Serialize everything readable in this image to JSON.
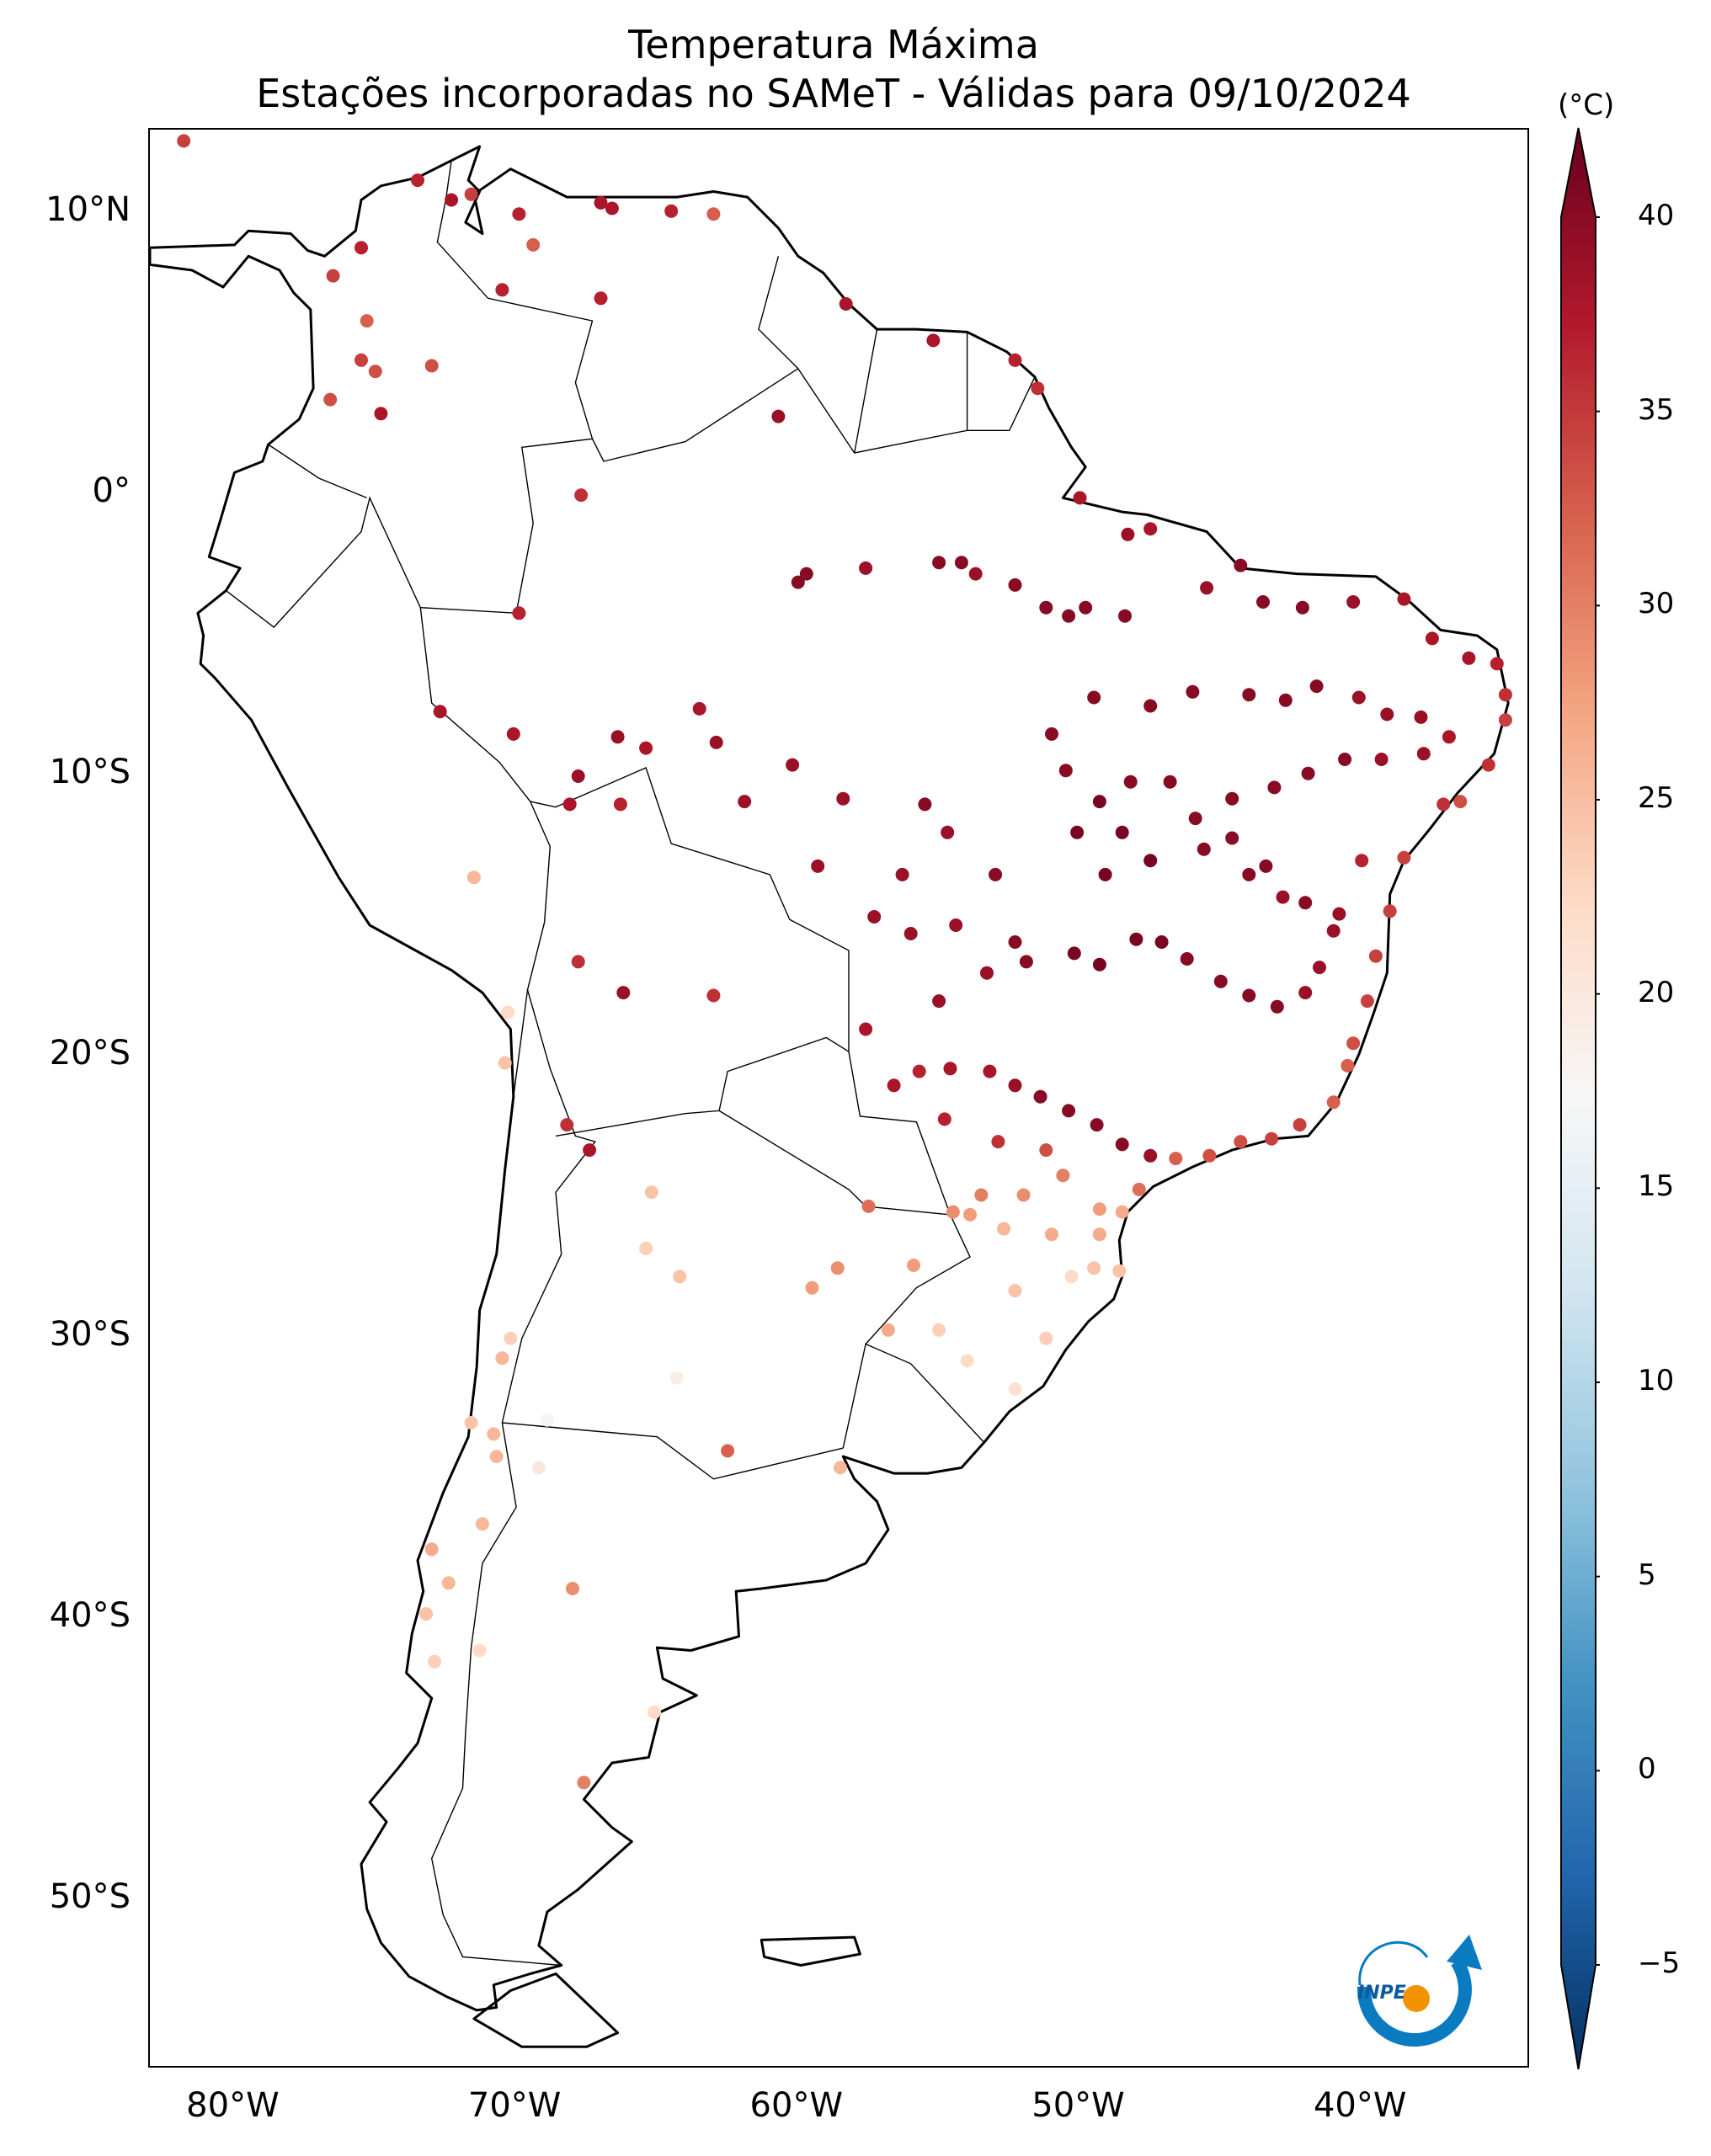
{
  "title": {
    "line1": "Temperatura Máxima",
    "line2": "Estações incorporadas no SAMeT - Válidas para 09/10/2024"
  },
  "map": {
    "lon_range": [
      -83,
      -34
    ],
    "lat_range": [
      -56,
      13
    ],
    "lat_labels": [
      {
        "value": 10,
        "text": "10°N"
      },
      {
        "value": 0,
        "text": "0°"
      },
      {
        "value": -10,
        "text": "10°S"
      },
      {
        "value": -20,
        "text": "20°S"
      },
      {
        "value": -30,
        "text": "30°S"
      },
      {
        "value": -40,
        "text": "40°S"
      },
      {
        "value": -50,
        "text": "50°S"
      }
    ],
    "lon_labels": [
      {
        "value": -80,
        "text": "80°W"
      },
      {
        "value": -70,
        "text": "70°W"
      },
      {
        "value": -60,
        "text": "60°W"
      },
      {
        "value": -50,
        "text": "50°W"
      },
      {
        "value": -40,
        "text": "40°W"
      }
    ]
  },
  "colorbar": {
    "unit": "(°C)",
    "min": -5,
    "max": 40,
    "ticks": [
      "40",
      "35",
      "30",
      "25",
      "20",
      "15",
      "10",
      "5",
      "0",
      "−5"
    ],
    "tick_values": [
      40,
      35,
      30,
      25,
      20,
      15,
      10,
      5,
      0,
      -5
    ],
    "colormap": [
      "#053061",
      "#2166ac",
      "#4393c3",
      "#92c5de",
      "#d1e5f0",
      "#f7f7f7",
      "#fddbc7",
      "#f4a582",
      "#d6604d",
      "#b2182b",
      "#67001f"
    ]
  },
  "logo": {
    "text": "INPE"
  },
  "chart_data": {
    "type": "scatter",
    "xlabel": "",
    "ylabel": "",
    "title": "Temperatura Máxima - Estações incorporadas no SAMeT - Válidas para 09/10/2024",
    "value_unit": "°C",
    "points": [
      [
        -81.8,
        12.6,
        33
      ],
      [
        -73.5,
        11.2,
        35
      ],
      [
        -72.3,
        10.5,
        36
      ],
      [
        -71.6,
        10.7,
        33
      ],
      [
        -69.9,
        10.0,
        35
      ],
      [
        -69.4,
        8.9,
        31
      ],
      [
        -67.0,
        10.4,
        36
      ],
      [
        -66.6,
        10.2,
        36
      ],
      [
        -64.5,
        10.1,
        35
      ],
      [
        -63.0,
        10.0,
        31
      ],
      [
        -75.5,
        8.8,
        35
      ],
      [
        -76.5,
        7.8,
        33
      ],
      [
        -70.5,
        7.3,
        35
      ],
      [
        -67.0,
        7.0,
        35
      ],
      [
        -58.3,
        6.8,
        36
      ],
      [
        -55.2,
        5.5,
        36
      ],
      [
        -52.3,
        4.8,
        35
      ],
      [
        -51.5,
        3.8,
        34
      ],
      [
        -60.7,
        2.8,
        37
      ],
      [
        -73.0,
        4.6,
        32
      ],
      [
        -75.3,
        6.2,
        31
      ],
      [
        -75.5,
        4.8,
        33
      ],
      [
        -75.0,
        4.4,
        32
      ],
      [
        -76.6,
        3.4,
        32
      ],
      [
        -74.8,
        2.9,
        36
      ],
      [
        -67.7,
        0.0,
        34
      ],
      [
        -50.0,
        -0.1,
        36
      ],
      [
        -48.3,
        -1.4,
        37
      ],
      [
        -47.5,
        -1.2,
        36
      ],
      [
        -44.3,
        -2.5,
        38
      ],
      [
        -60.0,
        -3.1,
        38
      ],
      [
        -59.7,
        -2.8,
        38
      ],
      [
        -57.6,
        -2.6,
        37
      ],
      [
        -55.0,
        -2.4,
        38
      ],
      [
        -54.2,
        -2.4,
        38
      ],
      [
        -53.7,
        -2.8,
        37
      ],
      [
        -52.3,
        -3.2,
        38
      ],
      [
        -51.2,
        -4.0,
        38
      ],
      [
        -50.4,
        -4.3,
        38
      ],
      [
        -49.8,
        -4.0,
        38
      ],
      [
        -48.4,
        -4.3,
        38
      ],
      [
        -45.5,
        -3.3,
        37
      ],
      [
        -43.5,
        -3.8,
        38
      ],
      [
        -42.1,
        -4.0,
        38
      ],
      [
        -40.3,
        -3.8,
        37
      ],
      [
        -38.5,
        -3.7,
        36
      ],
      [
        -37.5,
        -5.1,
        36
      ],
      [
        -36.2,
        -5.8,
        36
      ],
      [
        -35.2,
        -6.0,
        35
      ],
      [
        -34.9,
        -7.1,
        34
      ],
      [
        -34.9,
        -8.0,
        33
      ],
      [
        -35.5,
        -9.6,
        34
      ],
      [
        -36.5,
        -10.9,
        32
      ],
      [
        -37.1,
        -11.0,
        34
      ],
      [
        -38.5,
        -12.9,
        33
      ],
      [
        -39.0,
        -14.8,
        33
      ],
      [
        -39.5,
        -16.4,
        33
      ],
      [
        -39.8,
        -18.0,
        33
      ],
      [
        -40.3,
        -19.5,
        32
      ],
      [
        -40.5,
        -20.3,
        31
      ],
      [
        -41.0,
        -21.6,
        31
      ],
      [
        -42.2,
        -22.4,
        33
      ],
      [
        -43.2,
        -22.9,
        33
      ],
      [
        -44.3,
        -23.0,
        32
      ],
      [
        -45.4,
        -23.5,
        32
      ],
      [
        -46.6,
        -23.6,
        31
      ],
      [
        -47.5,
        -23.5,
        37
      ],
      [
        -48.5,
        -23.1,
        38
      ],
      [
        -49.4,
        -22.4,
        38
      ],
      [
        -50.4,
        -21.9,
        38
      ],
      [
        -51.4,
        -21.4,
        38
      ],
      [
        -52.3,
        -21.0,
        37
      ],
      [
        -53.2,
        -20.5,
        36
      ],
      [
        -54.6,
        -20.4,
        36
      ],
      [
        -55.7,
        -20.5,
        35
      ],
      [
        -56.6,
        -21.0,
        36
      ],
      [
        -57.6,
        -19.0,
        36
      ],
      [
        -55.0,
        -18.0,
        37
      ],
      [
        -53.3,
        -17.0,
        37
      ],
      [
        -51.9,
        -16.6,
        38
      ],
      [
        -50.2,
        -16.3,
        39
      ],
      [
        -49.3,
        -16.7,
        39
      ],
      [
        -48.0,
        -15.8,
        39
      ],
      [
        -47.1,
        -15.9,
        39
      ],
      [
        -46.2,
        -16.5,
        38
      ],
      [
        -45.0,
        -17.3,
        38
      ],
      [
        -44.0,
        -17.8,
        38
      ],
      [
        -43.0,
        -18.2,
        38
      ],
      [
        -42.0,
        -17.7,
        37
      ],
      [
        -41.5,
        -16.8,
        37
      ],
      [
        -41.0,
        -15.5,
        37
      ],
      [
        -42.0,
        -14.5,
        38
      ],
      [
        -43.4,
        -13.2,
        38
      ],
      [
        -44.6,
        -12.2,
        38
      ],
      [
        -45.9,
        -11.5,
        38
      ],
      [
        -46.8,
        -10.2,
        38
      ],
      [
        -48.2,
        -10.2,
        38
      ],
      [
        -49.3,
        -10.9,
        39
      ],
      [
        -48.5,
        -12.0,
        39
      ],
      [
        -47.5,
        -13.0,
        39
      ],
      [
        -49.1,
        -13.5,
        39
      ],
      [
        -50.1,
        -12.0,
        39
      ],
      [
        -50.5,
        -9.8,
        38
      ],
      [
        -51.0,
        -8.5,
        38
      ],
      [
        -49.5,
        -7.2,
        38
      ],
      [
        -47.5,
        -7.5,
        38
      ],
      [
        -46.0,
        -7.0,
        38
      ],
      [
        -44.0,
        -7.1,
        38
      ],
      [
        -42.7,
        -7.3,
        38
      ],
      [
        -41.6,
        -6.8,
        38
      ],
      [
        -40.1,
        -7.2,
        37
      ],
      [
        -39.1,
        -7.8,
        37
      ],
      [
        -37.9,
        -7.9,
        37
      ],
      [
        -36.9,
        -8.6,
        36
      ],
      [
        -37.8,
        -9.2,
        37
      ],
      [
        -39.3,
        -9.4,
        37
      ],
      [
        -40.6,
        -9.4,
        38
      ],
      [
        -41.9,
        -9.9,
        38
      ],
      [
        -43.1,
        -10.4,
        38
      ],
      [
        -44.6,
        -10.8,
        38
      ],
      [
        -45.6,
        -12.6,
        38
      ],
      [
        -44.0,
        -13.5,
        38
      ],
      [
        -42.8,
        -14.3,
        37
      ],
      [
        -40.8,
        -14.9,
        37
      ],
      [
        -40.0,
        -13.0,
        35
      ],
      [
        -55.5,
        -11.0,
        38
      ],
      [
        -56.3,
        -13.5,
        37
      ],
      [
        -57.3,
        -15.0,
        37
      ],
      [
        -56.0,
        -15.6,
        37
      ],
      [
        -54.4,
        -15.3,
        37
      ],
      [
        -52.3,
        -15.9,
        38
      ],
      [
        -53.0,
        -13.5,
        38
      ],
      [
        -54.7,
        -12.0,
        37
      ],
      [
        -58.4,
        -10.8,
        37
      ],
      [
        -59.3,
        -13.2,
        37
      ],
      [
        -60.2,
        -9.6,
        37
      ],
      [
        -61.9,
        -10.9,
        37
      ],
      [
        -62.9,
        -8.8,
        37
      ],
      [
        -63.5,
        -7.6,
        36
      ],
      [
        -65.4,
        -9.0,
        36
      ],
      [
        -66.4,
        -8.6,
        37
      ],
      [
        -67.8,
        -10.0,
        37
      ],
      [
        -70.1,
        -8.5,
        36
      ],
      [
        -72.7,
        -7.7,
        36
      ],
      [
        -69.9,
        -4.2,
        35
      ],
      [
        -68.1,
        -11.0,
        36
      ],
      [
        -66.3,
        -11.0,
        35
      ],
      [
        -63.0,
        -17.8,
        34
      ],
      [
        -66.2,
        -17.7,
        37
      ],
      [
        -67.8,
        -16.6,
        34
      ],
      [
        -71.5,
        -13.6,
        25
      ],
      [
        -70.3,
        -18.4,
        22
      ],
      [
        -70.4,
        -20.2,
        24
      ],
      [
        -68.2,
        -22.4,
        34
      ],
      [
        -67.4,
        -23.3,
        36
      ],
      [
        -65.2,
        -24.8,
        24
      ],
      [
        -65.4,
        -26.8,
        23
      ],
      [
        -64.2,
        -27.8,
        24
      ],
      [
        -64.3,
        -31.4,
        19
      ],
      [
        -62.5,
        -34.0,
        31
      ],
      [
        -58.5,
        -34.6,
        25
      ],
      [
        -59.5,
        -28.2,
        27
      ],
      [
        -58.6,
        -27.5,
        28
      ],
      [
        -57.5,
        -25.3,
        30
      ],
      [
        -55.9,
        -27.4,
        27
      ],
      [
        -56.8,
        -29.7,
        26
      ],
      [
        -55.0,
        -29.7,
        23
      ],
      [
        -54.0,
        -30.8,
        22
      ],
      [
        -52.3,
        -31.8,
        21
      ],
      [
        -51.2,
        -30.0,
        23
      ],
      [
        -52.3,
        -28.3,
        24
      ],
      [
        -50.3,
        -27.8,
        22
      ],
      [
        -49.5,
        -27.5,
        24
      ],
      [
        -48.6,
        -27.6,
        24
      ],
      [
        -49.3,
        -26.3,
        26
      ],
      [
        -51.0,
        -26.3,
        26
      ],
      [
        -52.7,
        -26.1,
        25
      ],
      [
        -53.9,
        -25.6,
        27
      ],
      [
        -54.5,
        -25.5,
        28
      ],
      [
        -53.5,
        -24.9,
        29
      ],
      [
        -52.0,
        -24.9,
        28
      ],
      [
        -50.6,
        -24.2,
        29
      ],
      [
        -49.3,
        -25.4,
        27
      ],
      [
        -48.5,
        -25.5,
        26
      ],
      [
        -47.9,
        -24.7,
        30
      ],
      [
        -51.2,
        -23.3,
        32
      ],
      [
        -52.9,
        -23.0,
        34
      ],
      [
        -54.8,
        -22.2,
        35
      ],
      [
        -70.8,
        -33.4,
        25
      ],
      [
        -71.6,
        -33.0,
        24
      ],
      [
        -70.7,
        -34.2,
        25
      ],
      [
        -71.2,
        -36.6,
        25
      ],
      [
        -72.4,
        -38.7,
        25
      ],
      [
        -73.2,
        -39.8,
        24
      ],
      [
        -72.9,
        -41.5,
        23
      ],
      [
        -71.3,
        -41.1,
        22
      ],
      [
        -68.0,
        -38.9,
        28
      ],
      [
        -65.1,
        -43.3,
        22
      ],
      [
        -67.6,
        -45.8,
        29
      ],
      [
        -70.2,
        -30.0,
        23
      ],
      [
        -70.5,
        -30.7,
        25
      ],
      [
        -68.9,
        -32.9,
        18
      ],
      [
        -69.2,
        -34.6,
        20
      ],
      [
        -73.0,
        -37.5,
        26
      ]
    ]
  }
}
